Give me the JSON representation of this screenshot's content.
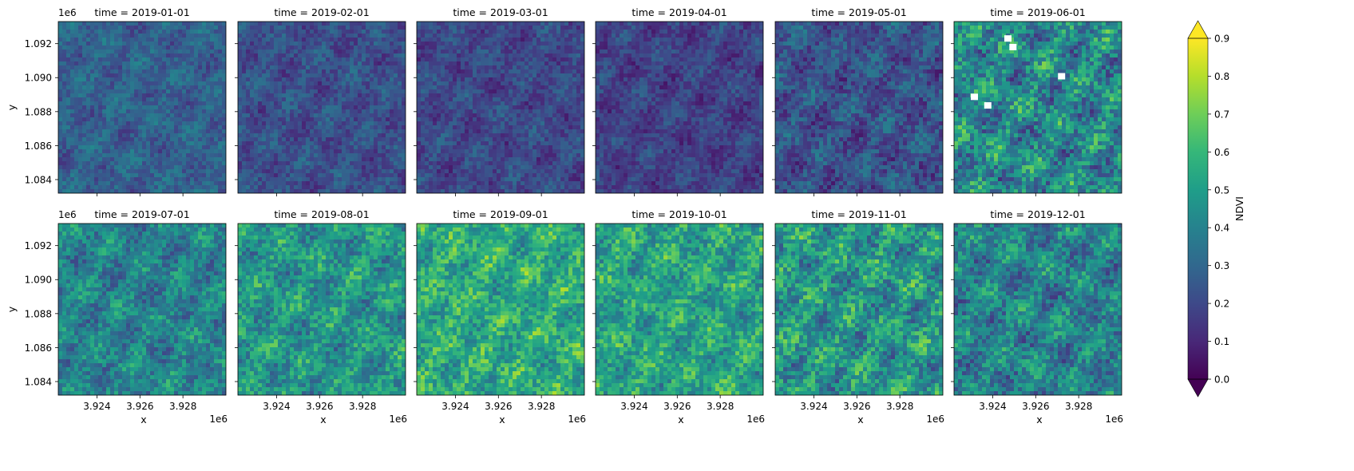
{
  "chart_data": {
    "type": "heatmap",
    "layout": "facet grid, 2 rows x 6 columns",
    "panels": [
      {
        "title": "time = 2019-01-01",
        "mean_ndvi": 0.28,
        "min_ndvi": 0.12,
        "max_ndvi": 0.5,
        "missing_patches": 0
      },
      {
        "title": "time = 2019-02-01",
        "mean_ndvi": 0.22,
        "min_ndvi": 0.08,
        "max_ndvi": 0.45,
        "missing_patches": 0
      },
      {
        "title": "time = 2019-03-01",
        "mean_ndvi": 0.2,
        "min_ndvi": 0.06,
        "max_ndvi": 0.42,
        "missing_patches": 0
      },
      {
        "title": "time = 2019-04-01",
        "mean_ndvi": 0.18,
        "min_ndvi": 0.05,
        "max_ndvi": 0.4,
        "missing_patches": 0
      },
      {
        "title": "time = 2019-05-01",
        "mean_ndvi": 0.23,
        "min_ndvi": 0.06,
        "max_ndvi": 0.55,
        "missing_patches": 0
      },
      {
        "title": "time = 2019-06-01",
        "mean_ndvi": 0.42,
        "min_ndvi": 0.08,
        "max_ndvi": 0.9,
        "missing_patches": 5
      },
      {
        "title": "time = 2019-07-01",
        "mean_ndvi": 0.4,
        "min_ndvi": 0.2,
        "max_ndvi": 0.8,
        "missing_patches": 0
      },
      {
        "title": "time = 2019-08-01",
        "mean_ndvi": 0.47,
        "min_ndvi": 0.22,
        "max_ndvi": 0.85,
        "missing_patches": 0
      },
      {
        "title": "time = 2019-09-01",
        "mean_ndvi": 0.55,
        "min_ndvi": 0.25,
        "max_ndvi": 0.9,
        "missing_patches": 0
      },
      {
        "title": "time = 2019-10-01",
        "mean_ndvi": 0.52,
        "min_ndvi": 0.25,
        "max_ndvi": 0.9,
        "missing_patches": 0
      },
      {
        "title": "time = 2019-11-01",
        "mean_ndvi": 0.47,
        "min_ndvi": 0.15,
        "max_ndvi": 0.9,
        "missing_patches": 0
      },
      {
        "title": "time = 2019-12-01",
        "mean_ndvi": 0.4,
        "min_ndvi": 0.15,
        "max_ndvi": 0.85,
        "missing_patches": 0
      }
    ],
    "xlabel": "x",
    "ylabel": "y",
    "x_offset_label": "1e6",
    "y_offset_label": "1e6",
    "x_ticks": [
      "3.924",
      "3.926",
      "3.928"
    ],
    "x_tick_values": [
      3.924,
      3.926,
      3.928
    ],
    "xlim": [
      3.9222,
      3.93
    ],
    "y_ticks": [
      "1.084",
      "1.086",
      "1.088",
      "1.090",
      "1.092"
    ],
    "y_tick_values": [
      1.084,
      1.086,
      1.088,
      1.09,
      1.092
    ],
    "ylim": [
      1.0832,
      1.0933
    ],
    "colorbar": {
      "label": "NDVI",
      "colormap": "viridis",
      "range": [
        0.0,
        0.9
      ],
      "extend": "both",
      "ticks": [
        "0.0",
        "0.1",
        "0.2",
        "0.3",
        "0.4",
        "0.5",
        "0.6",
        "0.7",
        "0.8",
        "0.9"
      ],
      "tick_values": [
        0.0,
        0.1,
        0.2,
        0.3,
        0.4,
        0.5,
        0.6,
        0.7,
        0.8,
        0.9
      ]
    },
    "viridis_stops": [
      "#440154",
      "#482878",
      "#3e4989",
      "#31688e",
      "#26828e",
      "#1f9e89",
      "#35b779",
      "#6ece58",
      "#b5de2b",
      "#fde725"
    ]
  }
}
